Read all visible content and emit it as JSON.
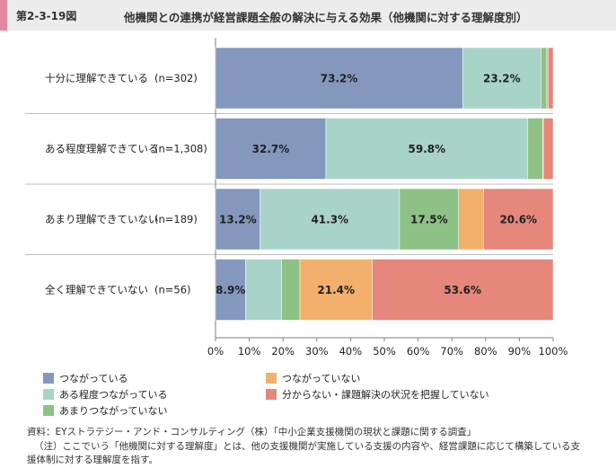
{
  "header": {
    "figure_number": "第2-3-19図",
    "title": "他機関との連携が経営課題全般の解決に与える効果（他機関に対する理解度別）"
  },
  "chart_data": {
    "type": "bar",
    "orientation": "horizontal",
    "stacked": true,
    "percent": true,
    "title": "他機関との連携が経営課題全般の解決に与える効果（他機関に対する理解度別）",
    "categories": [
      "十分に理解できている",
      "ある程度理解できている",
      "あまり理解できていない",
      "全く理解できていない"
    ],
    "sample_sizes": [
      "(n=302)",
      "(n=1,308)",
      "(n=189)",
      "(n=56)"
    ],
    "series": [
      {
        "name": "つながっている",
        "color": "#8497bd",
        "values": [
          73.2,
          32.7,
          13.2,
          8.9
        ],
        "labels": [
          "73.2%",
          "32.7%",
          "13.2%",
          "8.9%"
        ]
      },
      {
        "name": "ある程度つながっている",
        "color": "#a8d3c9",
        "values": [
          23.2,
          59.8,
          41.3,
          10.7
        ],
        "labels": [
          "23.2%",
          "59.8%",
          "41.3%",
          ""
        ]
      },
      {
        "name": "あまりつながっていない",
        "color": "#8ec185",
        "values": [
          1.7,
          4.4,
          17.5,
          5.4
        ],
        "labels": [
          "",
          "",
          "17.5%",
          ""
        ]
      },
      {
        "name": "つながっていない",
        "color": "#f2b06c",
        "values": [
          0.4,
          0.2,
          7.4,
          21.4
        ],
        "labels": [
          "",
          "",
          "",
          "21.4%"
        ]
      },
      {
        "name": "分からない・課題解決の状況を把握していない",
        "color": "#e5877b",
        "values": [
          1.5,
          2.9,
          20.6,
          53.6
        ],
        "labels": [
          "",
          "",
          "20.6%",
          "53.6%"
        ]
      }
    ],
    "xlim": [
      0,
      100
    ],
    "xticks": [
      "0%",
      "10%",
      "20%",
      "30%",
      "40%",
      "50%",
      "60%",
      "70%",
      "80%",
      "90%",
      "100%"
    ],
    "legend_position": "bottom"
  },
  "notes": {
    "source": "資料：EYストラテジー・アンド・コンサルティング（株）「中小企業支援機関の現状と課題に関する調査」",
    "note_line1": "（注）ここでいう「他機関に対する理解度」とは、他の支援機関が実施している支援の内容や、経営課題に応じて構築している支",
    "note_line2": "援体制に対する理解度を指す。"
  }
}
